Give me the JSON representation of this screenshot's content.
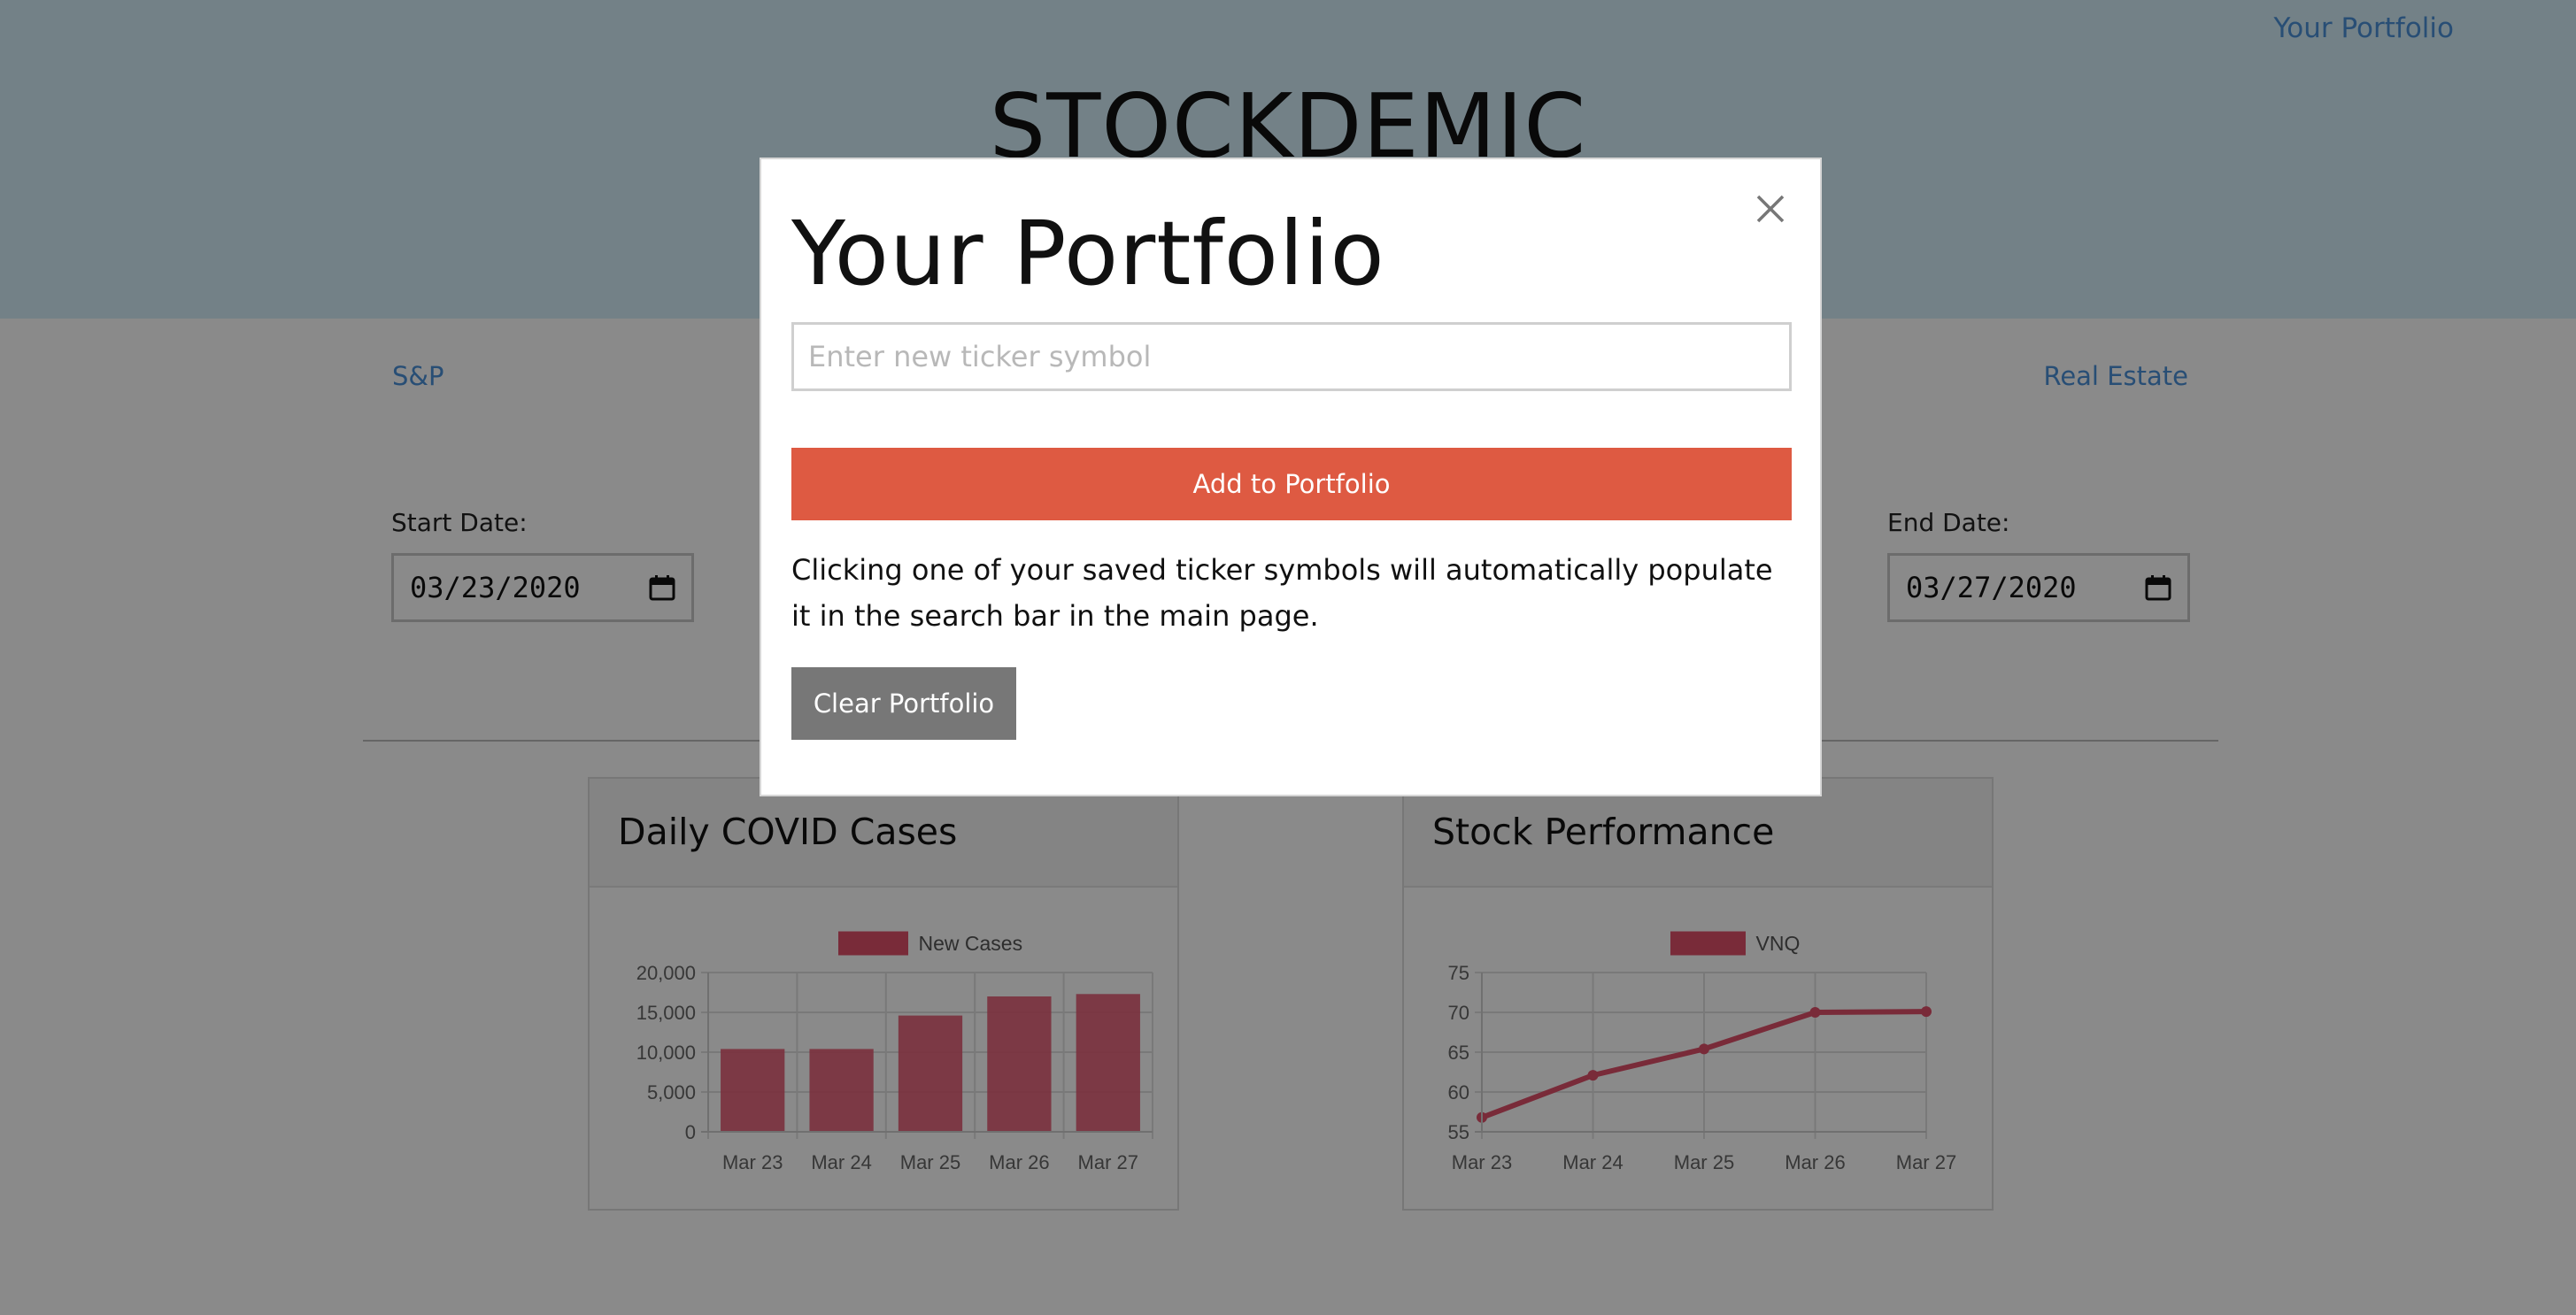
{
  "header": {
    "portfolio_link": "Your Portfolio",
    "brand": "STOCKDEMIC"
  },
  "nav": {
    "left_label": "S&P",
    "right_label": "Real Estate"
  },
  "dates": {
    "start_label": "Start Date:",
    "start_value": "03/23/2020",
    "end_label": "End Date:",
    "end_value": "03/27/2020"
  },
  "cards": {
    "covid_title": "Daily COVID Cases",
    "stock_title": "Stock Performance"
  },
  "modal": {
    "title": "Your Portfolio",
    "input_placeholder": "Enter new ticker symbol",
    "add_label": "Add to Portfolio",
    "info_text": "Clicking one of your saved ticker symbols will automatically populate it in the search bar in the main page.",
    "clear_label": "Clear Portfolio"
  },
  "colors": {
    "accent": "#de5a42",
    "link": "#4a90d9",
    "chart_series": "#e0506a",
    "button_gray": "#777777"
  },
  "icons": {
    "close": "close-icon",
    "calendar": "calendar-icon"
  },
  "chart_data": [
    {
      "type": "bar",
      "categories": [
        "Mar 23",
        "Mar 24",
        "Mar 25",
        "Mar 26",
        "Mar 27"
      ],
      "series": [
        {
          "name": "New Cases",
          "values": [
            10400,
            10400,
            14600,
            17000,
            17300
          ]
        }
      ],
      "ylim": [
        0,
        20000
      ],
      "yticks": [
        "0",
        "5,000",
        "10,000",
        "15,000",
        "20,000"
      ],
      "legend": "top",
      "grid": true
    },
    {
      "type": "line",
      "categories": [
        "Mar 23",
        "Mar 24",
        "Mar 25",
        "Mar 26",
        "Mar 27"
      ],
      "series": [
        {
          "name": "VNQ",
          "values": [
            56.8,
            62.1,
            65.4,
            70.0,
            70.1
          ]
        }
      ],
      "ylim": [
        55,
        75
      ],
      "yticks": [
        "55",
        "60",
        "65",
        "70",
        "75"
      ],
      "legend": "top",
      "grid": true
    }
  ]
}
